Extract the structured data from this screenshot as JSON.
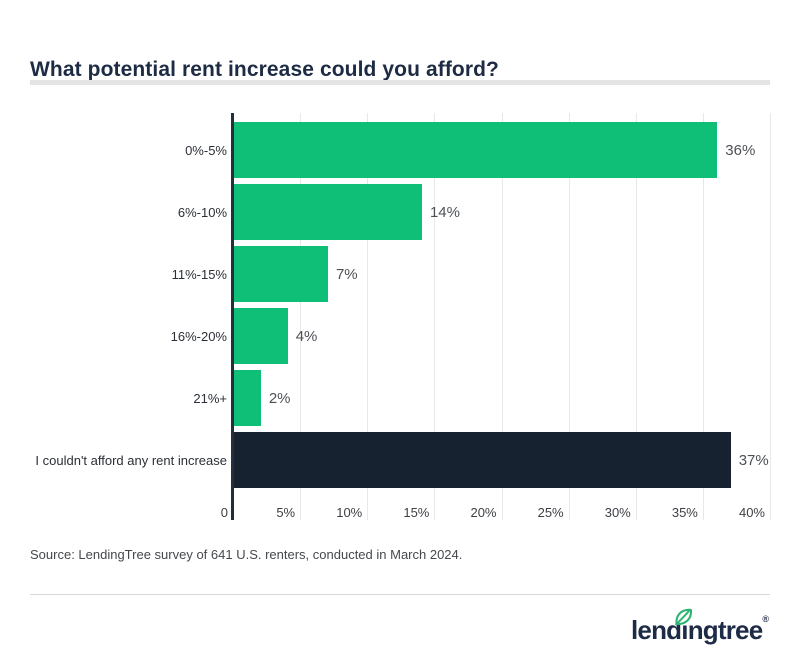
{
  "title": "What potential rent increase could you afford?",
  "source_note": "Source: LendingTree survey of 641 U.S. renters, conducted in March 2024.",
  "logo": {
    "text_before_leaf": "lend",
    "leaf_letter": "ı",
    "text_after_leaf": "ngtree",
    "registered_mark": "®"
  },
  "colors": {
    "bar_green": "#0fbe77",
    "bar_navy": "#16222f",
    "title_text": "#1d2b44",
    "category_text": "#2b2f36",
    "value_text": "#4d5156",
    "tick_text": "#3c4045",
    "source_text": "#45484d",
    "gridline": "#e8e8e8",
    "axis_line": "#252f3b",
    "title_divider": "#e4e4e4",
    "bottom_divider": "#d7d7d7",
    "logo_text": "#1d2b47",
    "leaf_green": "#2eb473"
  },
  "chart_data": {
    "type": "bar",
    "orientation": "horizontal",
    "title": "What potential rent increase could you afford?",
    "categories": [
      "0%-5%",
      "6%-10%",
      "11%-15%",
      "16%-20%",
      "21%+",
      "I couldn't afford any rent increase"
    ],
    "values": [
      36,
      14,
      7,
      4,
      2,
      37
    ],
    "value_labels": [
      "36%",
      "14%",
      "7%",
      "4%",
      "2%",
      "37%"
    ],
    "bar_colors": [
      "green",
      "green",
      "green",
      "green",
      "green",
      "navy"
    ],
    "xlim": [
      0,
      40
    ],
    "x_tick_values": [
      0,
      5,
      10,
      15,
      20,
      25,
      30,
      35,
      40
    ],
    "x_ticks": [
      "0",
      "5%",
      "10%",
      "15%",
      "20%",
      "25%",
      "30%",
      "35%",
      "40%"
    ],
    "grid": true,
    "legend": false
  }
}
